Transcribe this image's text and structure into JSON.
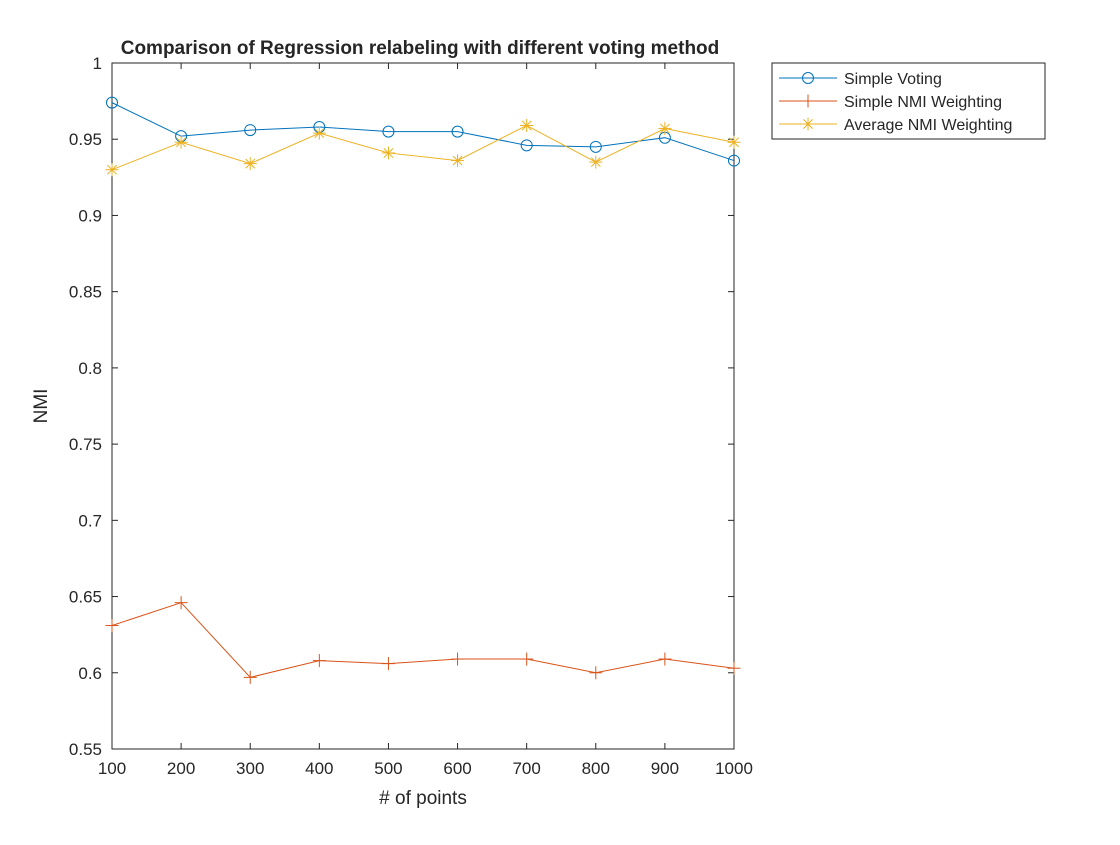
{
  "chart_data": {
    "type": "line",
    "title": "Comparison of Regression relabeling with different voting method",
    "xlabel": "# of points",
    "ylabel": "NMI",
    "x": [
      100,
      200,
      300,
      400,
      500,
      600,
      700,
      800,
      900,
      1000
    ],
    "xlim": [
      100,
      1000
    ],
    "ylim": [
      0.55,
      1
    ],
    "xticks": [
      100,
      200,
      300,
      400,
      500,
      600,
      700,
      800,
      900,
      1000
    ],
    "xtick_labels": [
      "100",
      "200",
      "300",
      "400",
      "500",
      "600",
      "700",
      "800",
      "900",
      "1000"
    ],
    "yticks": [
      0.55,
      0.6,
      0.65,
      0.7,
      0.75,
      0.8,
      0.85,
      0.9,
      0.95,
      1
    ],
    "ytick_labels": [
      "0.55",
      "0.6",
      "0.65",
      "0.7",
      "0.75",
      "0.8",
      "0.85",
      "0.9",
      "0.95",
      "1"
    ],
    "grid": false,
    "legend_position": "outside-top-right",
    "series": [
      {
        "name": "Simple Voting",
        "color": "#0072BD",
        "marker": "circle",
        "values": [
          0.974,
          0.952,
          0.956,
          0.958,
          0.955,
          0.955,
          0.946,
          0.945,
          0.951,
          0.936
        ]
      },
      {
        "name": "Simple NMI Weighting",
        "color": "#D95319",
        "marker": "plus",
        "values": [
          0.631,
          0.646,
          0.597,
          0.608,
          0.606,
          0.609,
          0.609,
          0.6,
          0.609,
          0.603
        ]
      },
      {
        "name": "Average NMI Weighting",
        "color": "#EDB120",
        "marker": "asterisk",
        "values": [
          0.93,
          0.948,
          0.934,
          0.954,
          0.941,
          0.936,
          0.959,
          0.935,
          0.957,
          0.948
        ]
      }
    ]
  }
}
